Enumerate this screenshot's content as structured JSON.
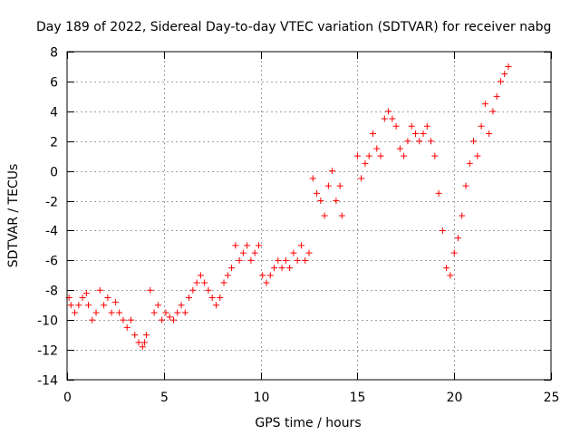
{
  "chart_data": {
    "type": "scatter",
    "title": "Day 189 of 2022, Sidereal Day-to-day VTEC variation (SDTVAR) for receiver nabg",
    "xlabel": "GPS time / hours",
    "ylabel": "SDTVAR / TECUs",
    "xlim": [
      0,
      25
    ],
    "ylim": [
      -14,
      8
    ],
    "xticks": [
      0,
      5,
      10,
      15,
      20,
      25
    ],
    "yticks": [
      -14,
      -12,
      -10,
      -8,
      -6,
      -4,
      -2,
      0,
      2,
      4,
      6,
      8
    ],
    "grid": true,
    "marker": "+",
    "series": [
      {
        "name": "SDTVAR",
        "color": "#ff0000",
        "x": [
          0.1,
          0.2,
          0.4,
          0.6,
          0.8,
          1.0,
          1.1,
          1.3,
          1.5,
          1.7,
          1.9,
          2.1,
          2.3,
          2.5,
          2.7,
          2.9,
          3.1,
          3.3,
          3.5,
          3.7,
          3.9,
          4.0,
          4.1,
          4.3,
          4.5,
          4.7,
          4.9,
          5.1,
          5.3,
          5.5,
          5.7,
          5.9,
          6.1,
          6.3,
          6.5,
          6.7,
          6.9,
          7.1,
          7.3,
          7.5,
          7.7,
          7.9,
          8.1,
          8.3,
          8.5,
          8.7,
          8.9,
          9.1,
          9.3,
          9.5,
          9.7,
          9.9,
          10.1,
          10.3,
          10.5,
          10.7,
          10.9,
          11.1,
          11.3,
          11.5,
          11.7,
          11.9,
          12.1,
          12.3,
          12.5,
          12.7,
          12.9,
          13.1,
          13.3,
          13.5,
          13.7,
          13.9,
          14.1,
          14.2,
          15.0,
          15.2,
          15.4,
          15.6,
          15.8,
          16.0,
          16.2,
          16.4,
          16.6,
          16.8,
          17.0,
          17.2,
          17.4,
          17.6,
          17.8,
          18.0,
          18.2,
          18.4,
          18.6,
          18.8,
          19.0,
          19.2,
          19.4,
          19.6,
          19.8,
          20.0,
          20.2,
          20.4,
          20.6,
          20.8,
          21.0,
          21.2,
          21.4,
          21.6,
          21.8,
          22.0,
          22.2,
          22.4,
          22.6,
          22.8
        ],
        "y": [
          -8.5,
          -9.0,
          -9.5,
          -9.0,
          -8.5,
          -8.2,
          -9.0,
          -10.0,
          -9.5,
          -8.0,
          -9.0,
          -8.5,
          -9.5,
          -8.8,
          -9.5,
          -10.0,
          -10.5,
          -10.0,
          -11.0,
          -11.5,
          -11.8,
          -11.5,
          -11.0,
          -8.0,
          -9.5,
          -9.0,
          -10.0,
          -9.5,
          -9.8,
          -10.0,
          -9.5,
          -9.0,
          -9.5,
          -8.5,
          -8.0,
          -7.5,
          -7.0,
          -7.5,
          -8.0,
          -8.5,
          -9.0,
          -8.5,
          -7.5,
          -7.0,
          -6.5,
          -5.0,
          -6.0,
          -5.5,
          -5.0,
          -6.0,
          -5.5,
          -5.0,
          -7.0,
          -7.5,
          -7.0,
          -6.5,
          -6.0,
          -6.5,
          -6.0,
          -6.5,
          -5.5,
          -6.0,
          -5.0,
          -6.0,
          -5.5,
          -0.5,
          -1.5,
          -2.0,
          -3.0,
          -1.0,
          0.0,
          -2.0,
          -1.0,
          -3.0,
          1.0,
          -0.5,
          0.5,
          1.0,
          2.5,
          1.5,
          1.0,
          3.5,
          4.0,
          3.5,
          3.0,
          1.5,
          1.0,
          2.0,
          3.0,
          2.5,
          2.0,
          2.5,
          3.0,
          2.0,
          1.0,
          -1.5,
          -4.0,
          -6.5,
          -7.0,
          -5.5,
          -4.5,
          -3.0,
          -1.0,
          0.5,
          2.0,
          1.0,
          3.0,
          4.5,
          2.5,
          4.0,
          5.0,
          6.0,
          6.5,
          7.0
        ]
      }
    ]
  }
}
